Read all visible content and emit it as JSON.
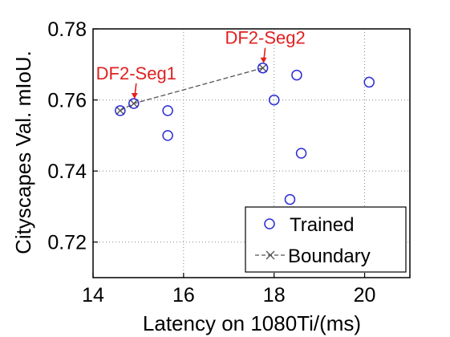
{
  "chart_data": {
    "type": "scatter",
    "xlabel": "Latency on 1080Ti/(ms)",
    "ylabel": "Cityscapes Val. mIoU.",
    "xlim": [
      14,
      21
    ],
    "ylim": [
      0.71,
      0.78
    ],
    "xticks": [
      14,
      16,
      18,
      20
    ],
    "yticks": [
      0.72,
      0.74,
      0.76,
      0.78
    ],
    "xtick_labels": [
      "14",
      "16",
      "18",
      "20"
    ],
    "ytick_labels": [
      "0.72",
      "0.74",
      "0.76",
      "0.78"
    ],
    "grid": true,
    "legend_position": "bottom-right",
    "series": [
      {
        "name": "Trained",
        "marker": "circle",
        "color": "#2b2bd6",
        "x": [
          14.6,
          14.9,
          15.65,
          15.65,
          17.75,
          18.0,
          18.5,
          18.6,
          18.35,
          20.1
        ],
        "y": [
          0.757,
          0.759,
          0.757,
          0.75,
          0.769,
          0.76,
          0.767,
          0.745,
          0.732,
          0.765
        ]
      },
      {
        "name": "Boundary",
        "marker": "x",
        "line": "dashed",
        "color": "#555555",
        "x": [
          14.6,
          14.9,
          17.75
        ],
        "y": [
          0.757,
          0.759,
          0.769
        ]
      }
    ],
    "annotations": [
      {
        "text": "DF2-Seg1",
        "x": 14.9,
        "y": 0.759,
        "color": "#e02020"
      },
      {
        "text": "DF2-Seg2",
        "x": 17.75,
        "y": 0.769,
        "color": "#e02020"
      }
    ]
  }
}
